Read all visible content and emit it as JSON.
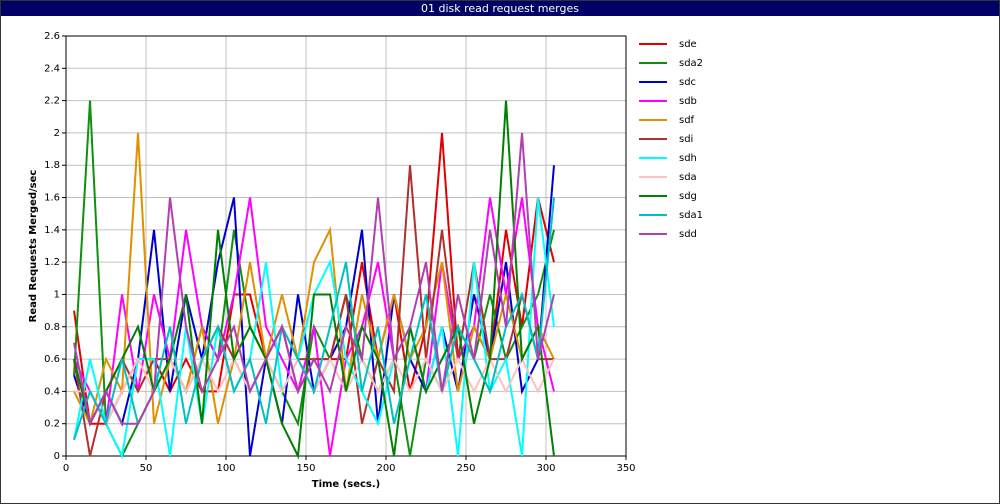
{
  "chart_data": {
    "type": "line",
    "title": "01 disk read request merges",
    "x_label": "Time (secs.)",
    "y_label": "Read Requests Merged/sec",
    "x": [
      5,
      15,
      25,
      35,
      45,
      55,
      65,
      75,
      85,
      95,
      105,
      115,
      125,
      135,
      145,
      155,
      165,
      175,
      185,
      195,
      205,
      215,
      225,
      235,
      245,
      255,
      265,
      275,
      285,
      295,
      305
    ],
    "xlim": [
      0,
      350
    ],
    "xticks": [
      0,
      50,
      100,
      150,
      200,
      250,
      300,
      350
    ],
    "ylim": [
      0,
      2.6
    ],
    "yticks": [
      0,
      0.2,
      0.4,
      0.6,
      0.8,
      1,
      1.2,
      1.4,
      1.6,
      1.8,
      2,
      2.2,
      2.4,
      2.6
    ],
    "grid": true,
    "legend": "right",
    "series": [
      {
        "name": "sde",
        "color": "#e00000",
        "values": [
          0.9,
          0.2,
          0.2,
          0.4,
          0.6,
          0.6,
          0.4,
          0.6,
          0.4,
          0.4,
          1.0,
          1.0,
          0.6,
          0.8,
          0.4,
          0.6,
          0.6,
          0.6,
          1.2,
          0.6,
          1.0,
          0.4,
          0.8,
          2.0,
          0.6,
          0.8,
          0.6,
          1.4,
          0.8,
          1.6,
          1.2
        ]
      },
      {
        "name": "sda2",
        "color": "#109010",
        "values": [
          0.5,
          2.2,
          0.2,
          0,
          0.2,
          0.4,
          0.6,
          0.4,
          0.8,
          0.6,
          1.4,
          0.8,
          0.6,
          0.4,
          0.2,
          0.8,
          0.6,
          1.0,
          0.6,
          0.4,
          0.6,
          0,
          0.6,
          0.4,
          0.8,
          0.6,
          1.0,
          0.6,
          0.8,
          1.0,
          1.4
        ]
      },
      {
        "name": "sdc",
        "color": "#0000cc",
        "values": [
          0.5,
          0.2,
          0.4,
          0.2,
          0.6,
          1.4,
          0.4,
          1.0,
          0.6,
          1.2,
          1.6,
          0,
          0.6,
          0.2,
          1.0,
          0.4,
          0.6,
          0.8,
          1.4,
          0.2,
          1.0,
          0.6,
          0.4,
          0.8,
          0.4,
          1.0,
          0.6,
          1.2,
          0.4,
          0.6,
          1.8
        ]
      },
      {
        "name": "sdb",
        "color": "#ff00ff",
        "values": [
          0.6,
          0.4,
          0.2,
          1.0,
          0.4,
          1.0,
          0.6,
          1.4,
          0.8,
          0.6,
          1.0,
          1.6,
          0.8,
          0.6,
          0.4,
          0.8,
          0,
          0.6,
          0.8,
          1.2,
          0.6,
          0.8,
          0.4,
          1.2,
          0.6,
          0.8,
          1.6,
          1.0,
          1.6,
          0.8,
          0.4
        ]
      },
      {
        "name": "sdf",
        "color": "#e09000",
        "values": [
          0.4,
          0.2,
          0.6,
          0.4,
          2.0,
          0.2,
          0.6,
          0.4,
          0.8,
          0.2,
          0.6,
          1.2,
          0.6,
          1.0,
          0.6,
          1.2,
          1.4,
          0.4,
          1.0,
          0.6,
          1.0,
          0.6,
          0.8,
          1.2,
          0.4,
          0.8,
          0.6,
          1.0,
          0.6,
          0.8,
          0.6
        ]
      },
      {
        "name": "sdi",
        "color": "#b03030",
        "values": [
          0.6,
          0,
          0.4,
          0.6,
          0.4,
          0.6,
          0.6,
          0.4,
          0.6,
          0.8,
          0.6,
          0.4,
          0.6,
          0.8,
          0.6,
          0.6,
          0.6,
          1.0,
          0.2,
          0.6,
          0.4,
          1.8,
          0.6,
          1.4,
          0.6,
          1.2,
          0.6,
          0.6,
          1.0,
          0.6,
          0.6
        ]
      },
      {
        "name": "sdh",
        "color": "#00ffff",
        "values": [
          0.1,
          0.6,
          0.2,
          0,
          0.6,
          0.6,
          0,
          0.8,
          0.2,
          0.8,
          0.4,
          0.6,
          1.2,
          0.4,
          0.6,
          1.0,
          1.2,
          0.6,
          0.4,
          0.2,
          0.6,
          0.8,
          0.4,
          0.8,
          0,
          1.2,
          0.4,
          0.6,
          0,
          1.6,
          0.8
        ]
      },
      {
        "name": "sda",
        "color": "#ffc0c0",
        "values": [
          0.4,
          0.4,
          0.2,
          0.4,
          0.6,
          0.4,
          0.6,
          0.4,
          0.6,
          0.4,
          0.6,
          0.4,
          0.6,
          0.4,
          0.6,
          0.4,
          0.6,
          0.4,
          0.6,
          0.4,
          0.6,
          0.4,
          0.6,
          0.4,
          0.6,
          0.4,
          0.6,
          0.4,
          0.6,
          0.4,
          0.6
        ]
      },
      {
        "name": "sdg",
        "color": "#008000",
        "values": [
          0.6,
          0.2,
          0.4,
          0.6,
          0.8,
          0.4,
          0.6,
          1.0,
          0.2,
          1.4,
          0.6,
          0.8,
          0.6,
          0.2,
          0,
          1.0,
          1.0,
          0.4,
          0.8,
          0.6,
          0,
          0.8,
          0.4,
          0.6,
          0.8,
          0.2,
          0.6,
          2.2,
          0.6,
          0.8,
          0
        ]
      },
      {
        "name": "sda1",
        "color": "#00c0c0",
        "values": [
          0.1,
          0.4,
          0.2,
          0.6,
          0.2,
          0.4,
          0.8,
          0.2,
          0.6,
          0.8,
          0.4,
          0.6,
          0.2,
          0.8,
          0.6,
          0.4,
          0.8,
          1.2,
          0.4,
          0.8,
          0.2,
          0.6,
          1.0,
          0.4,
          0.8,
          0.6,
          0.4,
          0.8,
          1.0,
          0.6,
          1.6
        ]
      },
      {
        "name": "sdd",
        "color": "#b040b0",
        "values": [
          0.7,
          0.2,
          0.4,
          0.2,
          0.2,
          0.4,
          1.6,
          0.8,
          0.4,
          0.6,
          0.8,
          0.4,
          0.6,
          0.8,
          0.4,
          0.6,
          0.4,
          0.8,
          0.6,
          1.6,
          0.6,
          0.8,
          1.2,
          0.4,
          1.0,
          0.6,
          1.4,
          0.8,
          2.0,
          0.6,
          1.0
        ]
      }
    ]
  }
}
